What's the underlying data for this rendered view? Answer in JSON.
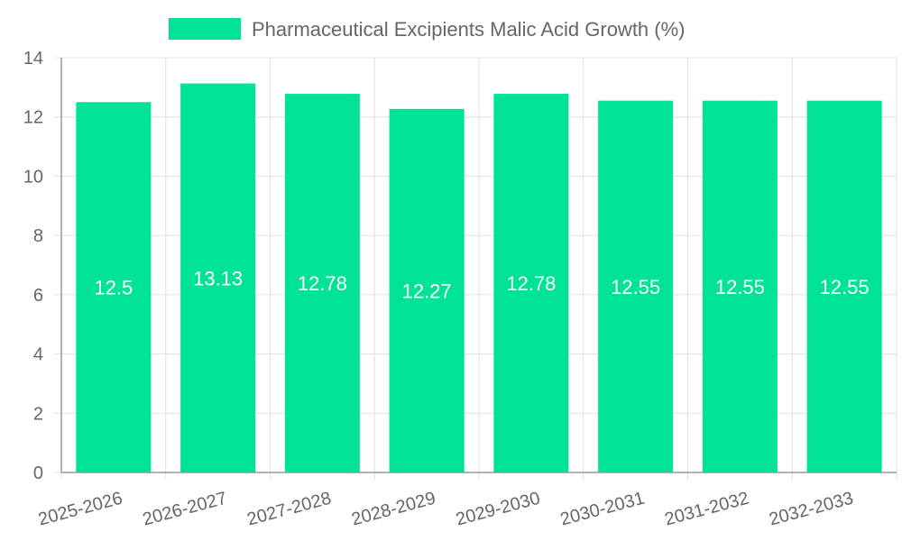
{
  "chart_data": {
    "type": "bar",
    "categories": [
      "2025-2026",
      "2026-2027",
      "2027-2028",
      "2028-2029",
      "2029-2030",
      "2030-2031",
      "2031-2032",
      "2032-2033"
    ],
    "series": [
      {
        "name": "Pharmaceutical Excipients Malic Acid Growth (%)",
        "values": [
          12.5,
          13.13,
          12.78,
          12.27,
          12.78,
          12.55,
          12.55,
          12.55
        ],
        "color": "#00e396"
      }
    ],
    "data_labels": [
      "12.5",
      "13.13",
      "12.78",
      "12.27",
      "12.78",
      "12.55",
      "12.55",
      "12.55"
    ],
    "y_ticks": [
      "0",
      "2",
      "4",
      "6",
      "8",
      "10",
      "12",
      "14"
    ],
    "ylim": [
      0,
      14
    ],
    "grid": true,
    "legend_position": "top-center",
    "x_label_rotation": "slanted",
    "colors": {
      "grid": "#e0e0e0",
      "axis": "#999999",
      "tick_text": "#666666",
      "data_label": "#ffffff"
    }
  }
}
